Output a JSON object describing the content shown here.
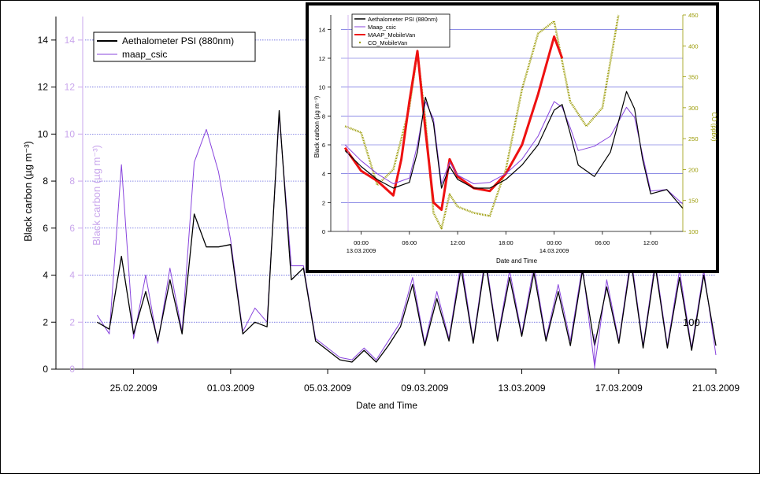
{
  "chart_data": [
    {
      "type": "line",
      "title": "",
      "xlabel": "Date and Time",
      "ylabel": "Black carbon (µg m⁻³)",
      "ylabel_right": "Black carbon (µg m⁻³)",
      "x_ticks": [
        "25.02.2009",
        "01.03.2009",
        "05.03.2009",
        "09.03.2009",
        "13.03.2009",
        "17.03.2009",
        "21.03.2009"
      ],
      "y_ticks": [
        "0",
        "2",
        "4",
        "6",
        "8",
        "10",
        "12",
        "14"
      ],
      "ylim": [
        0,
        15
      ],
      "xlim": [
        "23.02.2009",
        "21.03.2009"
      ],
      "grid": true,
      "legend": "top-left",
      "stray_label": "100",
      "series": [
        {
          "name": "Aethalometer PSI (880nm)",
          "color": "#000000",
          "values": [
            [
              "23.02.2009 12:00",
              2.0
            ],
            [
              "24.02.2009 00:00",
              1.7
            ],
            [
              "24.02.2009 12:00",
              4.8
            ],
            [
              "25.02.2009 00:00",
              1.5
            ],
            [
              "25.02.2009 12:00",
              3.3
            ],
            [
              "26.02.2009 00:00",
              1.2
            ],
            [
              "26.02.2009 12:00",
              3.8
            ],
            [
              "27.02.2009 00:00",
              1.5
            ],
            [
              "27.02.2009 12:00",
              6.6
            ],
            [
              "28.02.2009 00:00",
              5.2
            ],
            [
              "28.02.2009 12:00",
              5.2
            ],
            [
              "01.03.2009 00:00",
              5.3
            ],
            [
              "01.03.2009 12:00",
              1.5
            ],
            [
              "02.03.2009 00:00",
              2.0
            ],
            [
              "02.03.2009 12:00",
              1.8
            ],
            [
              "03.03.2009 00:00",
              11.0
            ],
            [
              "03.03.2009 12:00",
              3.8
            ],
            [
              "04.03.2009 00:00",
              4.3
            ],
            [
              "04.03.2009 12:00",
              1.2
            ],
            [
              "05.03.2009 00:00",
              0.8
            ],
            [
              "05.03.2009 12:00",
              0.4
            ],
            [
              "06.03.2009 00:00",
              0.3
            ],
            [
              "06.03.2009 12:00",
              0.8
            ],
            [
              "07.03.2009 00:00",
              0.3
            ],
            [
              "07.03.2009 12:00",
              1.0
            ],
            [
              "08.03.2009 00:00",
              1.8
            ],
            [
              "08.03.2009 12:00",
              3.6
            ],
            [
              "09.03.2009 00:00",
              1.0
            ],
            [
              "09.03.2009 12:00",
              3.0
            ],
            [
              "10.03.2009 00:00",
              1.2
            ],
            [
              "10.03.2009 12:00",
              4.3
            ],
            [
              "11.03.2009 00:00",
              1.1
            ],
            [
              "11.03.2009 12:00",
              4.6
            ],
            [
              "12.03.2009 00:00",
              1.2
            ],
            [
              "12.03.2009 12:00",
              3.9
            ],
            [
              "13.03.2009 00:00",
              1.4
            ],
            [
              "13.03.2009 12:00",
              4.1
            ],
            [
              "14.03.2009 00:00",
              1.2
            ],
            [
              "14.03.2009 12:00",
              3.3
            ],
            [
              "15.03.2009 00:00",
              1.0
            ],
            [
              "15.03.2009 12:00",
              4.2
            ],
            [
              "16.03.2009 00:00",
              1.0
            ],
            [
              "16.03.2009 12:00",
              3.5
            ],
            [
              "17.03.2009 00:00",
              1.1
            ],
            [
              "17.03.2009 12:00",
              4.6
            ],
            [
              "18.03.2009 00:00",
              0.9
            ],
            [
              "18.03.2009 12:00",
              4.4
            ],
            [
              "19.03.2009 00:00",
              0.9
            ],
            [
              "19.03.2009 12:00",
              3.9
            ],
            [
              "20.03.2009 00:00",
              0.8
            ],
            [
              "20.03.2009 12:00",
              4.0
            ],
            [
              "21.03.2009 00:00",
              1.0
            ]
          ]
        },
        {
          "name": "maap_csic",
          "color": "#8844dd",
          "values": [
            [
              "23.02.2009 12:00",
              2.3
            ],
            [
              "24.02.2009 00:00",
              1.5
            ],
            [
              "24.02.2009 12:00",
              8.7
            ],
            [
              "25.02.2009 00:00",
              1.3
            ],
            [
              "25.02.2009 12:00",
              4.0
            ],
            [
              "26.02.2009 00:00",
              1.1
            ],
            [
              "26.02.2009 12:00",
              4.3
            ],
            [
              "27.02.2009 00:00",
              1.6
            ],
            [
              "27.02.2009 12:00",
              8.8
            ],
            [
              "28.02.2009 00:00",
              10.2
            ],
            [
              "28.02.2009 12:00",
              8.4
            ],
            [
              "01.03.2009 00:00",
              5.5
            ],
            [
              "01.03.2009 12:00",
              1.6
            ],
            [
              "02.03.2009 00:00",
              2.6
            ],
            [
              "02.03.2009 12:00",
              2.0
            ],
            [
              "03.03.2009 00:00",
              10.8
            ],
            [
              "03.03.2009 12:00",
              4.4
            ],
            [
              "04.03.2009 00:00",
              4.4
            ],
            [
              "04.03.2009 12:00",
              1.3
            ],
            [
              "05.03.2009 00:00",
              0.9
            ],
            [
              "05.03.2009 12:00",
              0.5
            ],
            [
              "06.03.2009 00:00",
              0.4
            ],
            [
              "06.03.2009 12:00",
              0.9
            ],
            [
              "07.03.2009 00:00",
              0.4
            ],
            [
              "07.03.2009 12:00",
              1.2
            ],
            [
              "08.03.2009 00:00",
              2.0
            ],
            [
              "08.03.2009 12:00",
              3.9
            ],
            [
              "09.03.2009 00:00",
              1.1
            ],
            [
              "09.03.2009 12:00",
              3.3
            ],
            [
              "10.03.2009 00:00",
              1.3
            ],
            [
              "10.03.2009 12:00",
              4.6
            ],
            [
              "11.03.2009 00:00",
              1.2
            ],
            [
              "11.03.2009 12:00",
              4.8
            ],
            [
              "12.03.2009 00:00",
              1.3
            ],
            [
              "12.03.2009 12:00",
              4.2
            ],
            [
              "13.03.2009 00:00",
              1.5
            ],
            [
              "13.03.2009 12:00",
              4.4
            ],
            [
              "14.03.2009 00:00",
              1.3
            ],
            [
              "14.03.2009 12:00",
              3.6
            ],
            [
              "15.03.2009 00:00",
              1.2
            ],
            [
              "15.03.2009 12:00",
              4.4
            ],
            [
              "16.03.2009 00:00",
              0.1
            ],
            [
              "16.03.2009 12:00",
              3.8
            ],
            [
              "17.03.2009 00:00",
              1.2
            ],
            [
              "17.03.2009 12:00",
              4.8
            ],
            [
              "18.03.2009 00:00",
              1.0
            ],
            [
              "18.03.2009 12:00",
              4.6
            ],
            [
              "19.03.2009 00:00",
              1.0
            ],
            [
              "19.03.2009 12:00",
              4.2
            ],
            [
              "20.03.2009 00:00",
              0.9
            ],
            [
              "20.03.2009 12:00",
              4.2
            ],
            [
              "21.03.2009 00:00",
              0.6
            ]
          ]
        }
      ]
    },
    {
      "type": "line",
      "title": "",
      "xlabel": "Date and Time",
      "ylabel": "Black carbon (µg m⁻³)",
      "ylabel_right": "CO (ppbv)",
      "x_ticks": [
        {
          "time": "00:00",
          "date": "13.03.2009"
        },
        {
          "time": "06:00",
          "date": ""
        },
        {
          "time": "12:00",
          "date": ""
        },
        {
          "time": "18:00",
          "date": ""
        },
        {
          "time": "00:00",
          "date": "14.03.2009"
        },
        {
          "time": "06:00",
          "date": ""
        },
        {
          "time": "12:00",
          "date": ""
        }
      ],
      "y_ticks": [
        "0",
        "2",
        "4",
        "6",
        "8",
        "10",
        "12",
        "14"
      ],
      "y2_ticks": [
        "100",
        "150",
        "200",
        "250",
        "300",
        "350",
        "400",
        "450"
      ],
      "ylim": [
        0,
        15
      ],
      "y2lim": [
        100,
        450
      ],
      "xlim_hours_from_13.03.2009_00:00": [
        -2.5,
        40
      ],
      "grid": true,
      "legend": "top-left",
      "series": [
        {
          "name": "Aethalometer PSI (880nm)",
          "color": "#000000",
          "axis": "left",
          "values": [
            [
              "12.03.2009 22:00",
              5.6
            ],
            [
              "13.03.2009 00:00",
              4.5
            ],
            [
              "13.03.2009 02:00",
              3.6
            ],
            [
              "13.03.2009 04:00",
              3.0
            ],
            [
              "13.03.2009 06:00",
              3.4
            ],
            [
              "13.03.2009 07:00",
              5.5
            ],
            [
              "13.03.2009 08:00",
              9.3
            ],
            [
              "13.03.2009 09:00",
              7.5
            ],
            [
              "13.03.2009 10:00",
              3.0
            ],
            [
              "13.03.2009 11:00",
              4.5
            ],
            [
              "13.03.2009 12:00",
              3.6
            ],
            [
              "13.03.2009 14:00",
              3.0
            ],
            [
              "13.03.2009 16:00",
              3.0
            ],
            [
              "13.03.2009 18:00",
              3.6
            ],
            [
              "13.03.2009 20:00",
              4.6
            ],
            [
              "13.03.2009 22:00",
              6.0
            ],
            [
              "14.03.2009 00:00",
              8.4
            ],
            [
              "14.03.2009 01:00",
              8.8
            ],
            [
              "14.03.2009 02:00",
              6.8
            ],
            [
              "14.03.2009 03:00",
              4.6
            ],
            [
              "14.03.2009 05:00",
              3.8
            ],
            [
              "14.03.2009 07:00",
              5.5
            ],
            [
              "14.03.2009 09:00",
              9.7
            ],
            [
              "14.03.2009 10:00",
              8.5
            ],
            [
              "14.03.2009 11:00",
              5.0
            ],
            [
              "14.03.2009 12:00",
              2.6
            ],
            [
              "14.03.2009 14:00",
              2.9
            ],
            [
              "14.03.2009 16:00",
              1.6
            ]
          ]
        },
        {
          "name": "Maap_csic",
          "color": "#8844dd",
          "axis": "left",
          "values": [
            [
              "12.03.2009 22:00",
              6.0
            ],
            [
              "13.03.2009 00:00",
              4.9
            ],
            [
              "13.03.2009 02:00",
              4.0
            ],
            [
              "13.03.2009 04:00",
              3.3
            ],
            [
              "13.03.2009 06:00",
              3.7
            ],
            [
              "13.03.2009 07:00",
              6.0
            ],
            [
              "13.03.2009 08:00",
              9.0
            ],
            [
              "13.03.2009 09:00",
              7.8
            ],
            [
              "13.03.2009 10:00",
              3.3
            ],
            [
              "13.03.2009 11:00",
              4.8
            ],
            [
              "13.03.2009 12:00",
              3.9
            ],
            [
              "13.03.2009 14:00",
              3.3
            ],
            [
              "13.03.2009 16:00",
              3.4
            ],
            [
              "13.03.2009 18:00",
              4.0
            ],
            [
              "13.03.2009 20:00",
              5.0
            ],
            [
              "13.03.2009 22:00",
              6.6
            ],
            [
              "14.03.2009 00:00",
              9.0
            ],
            [
              "14.03.2009 01:00",
              8.6
            ],
            [
              "14.03.2009 02:00",
              7.2
            ],
            [
              "14.03.2009 03:00",
              5.6
            ],
            [
              "14.03.2009 05:00",
              5.9
            ],
            [
              "14.03.2009 07:00",
              6.6
            ],
            [
              "14.03.2009 09:00",
              8.6
            ],
            [
              "14.03.2009 10:00",
              7.9
            ],
            [
              "14.03.2009 11:00",
              5.3
            ],
            [
              "14.03.2009 12:00",
              2.8
            ],
            [
              "14.03.2009 14:00",
              2.9
            ],
            [
              "14.03.2009 16:00",
              1.9
            ]
          ]
        },
        {
          "name": "MAAP_MobileVan",
          "color": "#ee1111",
          "axis": "left",
          "values": [
            [
              "12.03.2009 22:00",
              5.8
            ],
            [
              "13.03.2009 00:00",
              4.2
            ],
            [
              "13.03.2009 02:00",
              3.5
            ],
            [
              "13.03.2009 04:00",
              2.5
            ],
            [
              "13.03.2009 05:00",
              5.0
            ],
            [
              "13.03.2009 06:00",
              9.0
            ],
            [
              "13.03.2009 07:00",
              12.5
            ],
            [
              "13.03.2009 08:00",
              7.0
            ],
            [
              "13.03.2009 09:00",
              2.0
            ],
            [
              "13.03.2009 10:00",
              1.5
            ],
            [
              "13.03.2009 11:00",
              5.0
            ],
            [
              "13.03.2009 12:00",
              3.8
            ],
            [
              "13.03.2009 14:00",
              3.0
            ],
            [
              "13.03.2009 16:00",
              2.8
            ],
            [
              "13.03.2009 18:00",
              4.0
            ],
            [
              "13.03.2009 20:00",
              6.0
            ],
            [
              "13.03.2009 22:00",
              9.5
            ],
            [
              "14.03.2009 00:00",
              13.5
            ],
            [
              "14.03.2009 01:00",
              12.0
            ]
          ]
        },
        {
          "name": "CO_MobileVan",
          "color": "#999900",
          "axis": "right",
          "values": [
            [
              "12.03.2009 22:00",
              270
            ],
            [
              "13.03.2009 00:00",
              260
            ],
            [
              "13.03.2009 02:00",
              175
            ],
            [
              "13.03.2009 04:00",
              200
            ],
            [
              "13.03.2009 06:00",
              300
            ],
            [
              "13.03.2009 07:00",
              390
            ],
            [
              "13.03.2009 08:00",
              280
            ],
            [
              "13.03.2009 09:00",
              130
            ],
            [
              "13.03.2009 10:00",
              105
            ],
            [
              "13.03.2009 11:00",
              160
            ],
            [
              "13.03.2009 12:00",
              140
            ],
            [
              "13.03.2009 14:00",
              130
            ],
            [
              "13.03.2009 16:00",
              125
            ],
            [
              "13.03.2009 18:00",
              200
            ],
            [
              "13.03.2009 20:00",
              330
            ],
            [
              "13.03.2009 22:00",
              420
            ],
            [
              "14.03.2009 00:00",
              440
            ],
            [
              "14.03.2009 02:00",
              310
            ],
            [
              "14.03.2009 04:00",
              270
            ],
            [
              "14.03.2009 06:00",
              300
            ],
            [
              "14.03.2009 08:00",
              450
            ]
          ]
        }
      ]
    }
  ]
}
